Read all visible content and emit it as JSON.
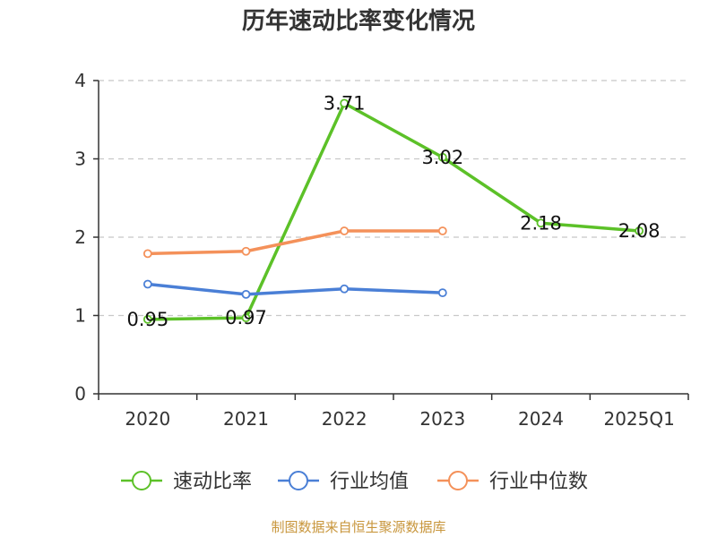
{
  "title": "历年速动比率变化情况",
  "source": "制图数据来自恒生聚源数据库",
  "chart_data": {
    "type": "line",
    "title": "历年速动比率变化情况",
    "categories": [
      "2020",
      "2021",
      "2022",
      "2023",
      "2024",
      "2025Q1"
    ],
    "ylim": [
      0,
      4
    ],
    "yticks": [
      "0",
      "1",
      "2",
      "3",
      "4"
    ],
    "grid": true,
    "legend_position": "bottom",
    "series": [
      {
        "name": "速动比率",
        "color": "#5cc128",
        "values": [
          0.95,
          0.97,
          3.71,
          3.02,
          2.18,
          2.08
        ],
        "labels": [
          "0.95",
          "0.97",
          "3.71",
          "3.02",
          "2.18",
          "2.08"
        ]
      },
      {
        "name": "行业均值",
        "color": "#4a7fd6",
        "values": [
          1.4,
          1.27,
          1.34,
          1.29,
          null,
          null
        ]
      },
      {
        "name": "行业中位数",
        "color": "#f4915a",
        "values": [
          1.79,
          1.82,
          2.08,
          2.08,
          null,
          null
        ]
      }
    ]
  }
}
